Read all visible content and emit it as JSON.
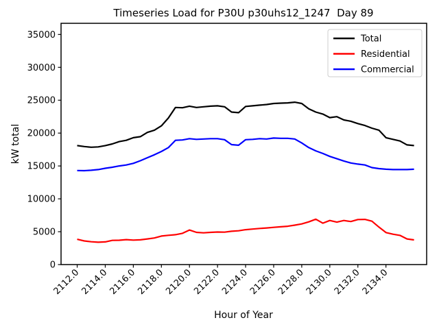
{
  "figure": {
    "background": "#ffffff",
    "spine_color": "#000000"
  },
  "chart_data": {
    "type": "line",
    "title": "Timeseries Load for P30U p30uhs12_1247  Day 89",
    "xlabel": "Hour of Year",
    "ylabel": "kW total",
    "grid": false,
    "legend_position": "upper right",
    "xlim": [
      2110.85,
      2136.9
    ],
    "ylim": [
      0,
      36700
    ],
    "xticks": [
      2112,
      2114,
      2116,
      2118,
      2120,
      2122,
      2124,
      2126,
      2128,
      2130,
      2132,
      2134
    ],
    "xtick_labels": [
      "2112.0",
      "2114.0",
      "2116.0",
      "2118.0",
      "2120.0",
      "2122.0",
      "2124.0",
      "2126.0",
      "2128.0",
      "2130.0",
      "2132.0",
      "2134.0"
    ],
    "yticks": [
      0,
      5000,
      10000,
      15000,
      20000,
      25000,
      30000,
      35000
    ],
    "ytick_labels": [
      "0",
      "5000",
      "10000",
      "15000",
      "20000",
      "25000",
      "30000",
      "35000"
    ],
    "x": [
      2112,
      2112.5,
      2113,
      2113.5,
      2114,
      2114.5,
      2115,
      2115.5,
      2116,
      2116.5,
      2117,
      2117.5,
      2118,
      2118.5,
      2119,
      2119.5,
      2120,
      2120.5,
      2121,
      2121.5,
      2122,
      2122.5,
      2123,
      2123.5,
      2124,
      2124.5,
      2125,
      2125.5,
      2126,
      2126.5,
      2127,
      2127.5,
      2128,
      2128.5,
      2129,
      2129.5,
      2130,
      2130.5,
      2131,
      2131.5,
      2132,
      2132.5,
      2133,
      2133.5,
      2134,
      2134.5,
      2135,
      2135.5,
      2136
    ],
    "series": [
      {
        "name": "Total",
        "color": "#000000",
        "values": [
          18100,
          17950,
          17850,
          17900,
          18100,
          18350,
          18700,
          18900,
          19300,
          19450,
          20100,
          20450,
          21100,
          22300,
          23900,
          23850,
          24100,
          23900,
          24000,
          24100,
          24150,
          24000,
          23200,
          23100,
          24050,
          24150,
          24250,
          24350,
          24500,
          24550,
          24600,
          24700,
          24500,
          23700,
          23200,
          22900,
          22350,
          22500,
          22000,
          21800,
          21450,
          21150,
          20750,
          20450,
          19300,
          19050,
          18800,
          18200,
          18100
        ]
      },
      {
        "name": "Residential",
        "color": "#ff0000",
        "values": [
          3850,
          3600,
          3470,
          3400,
          3450,
          3680,
          3700,
          3800,
          3720,
          3760,
          3900,
          4050,
          4340,
          4450,
          4550,
          4750,
          5250,
          4900,
          4830,
          4900,
          4950,
          4930,
          5070,
          5140,
          5310,
          5400,
          5490,
          5570,
          5660,
          5750,
          5830,
          6000,
          6180,
          6500,
          6900,
          6300,
          6700,
          6450,
          6700,
          6550,
          6850,
          6875,
          6600,
          5700,
          4870,
          4620,
          4445,
          3900,
          3750
        ]
      },
      {
        "name": "Commercial",
        "color": "#0000ff",
        "values": [
          14300,
          14280,
          14350,
          14450,
          14650,
          14800,
          15000,
          15150,
          15400,
          15800,
          16250,
          16700,
          17200,
          17800,
          18900,
          18950,
          19150,
          19050,
          19100,
          19150,
          19150,
          19000,
          18250,
          18150,
          19000,
          19050,
          19150,
          19100,
          19250,
          19200,
          19200,
          19100,
          18500,
          17800,
          17300,
          16900,
          16450,
          16100,
          15750,
          15450,
          15280,
          15150,
          14750,
          14600,
          14500,
          14450,
          14450,
          14450,
          14500
        ]
      }
    ]
  }
}
